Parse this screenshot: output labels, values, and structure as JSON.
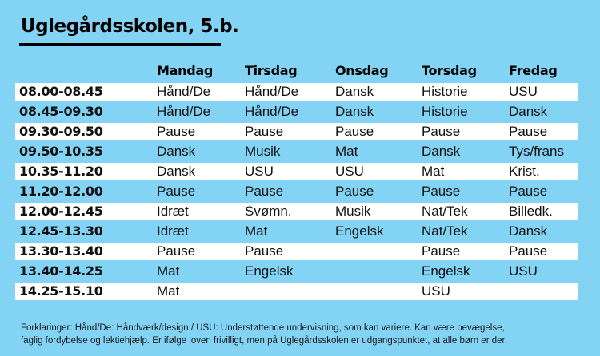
{
  "title": "Uglegårdsskolen, 5.b.",
  "days": [
    "Mandag",
    "Tirsdag",
    "Onsdag",
    "Torsdag",
    "Fredag"
  ],
  "rows": [
    {
      "time": "08.00-08.45",
      "cells": [
        "Hånd/De",
        "Hånd/De",
        "Dansk",
        "Historie",
        "USU"
      ]
    },
    {
      "time": "08.45-09.30",
      "cells": [
        "Hånd/De",
        "Hånd/De",
        "Dansk",
        "Historie",
        "Dansk"
      ]
    },
    {
      "time": "09.30-09.50",
      "cells": [
        "Pause",
        "Pause",
        "Pause",
        "Pause",
        "Pause"
      ]
    },
    {
      "time": "09.50-10.35",
      "cells": [
        "Dansk",
        "Musik",
        "Mat",
        "Dansk",
        "Tys/frans"
      ]
    },
    {
      "time": "10.35-11.20",
      "cells": [
        "Dansk",
        "USU",
        "USU",
        "Mat",
        "Krist."
      ]
    },
    {
      "time": "11.20-12.00",
      "cells": [
        "Pause",
        "Pause",
        "Pause",
        "Pause",
        "Pause"
      ]
    },
    {
      "time": "12.00-12.45",
      "cells": [
        "Idræt",
        "Svømn.",
        "Musik",
        "Nat/Tek",
        "Billedk."
      ]
    },
    {
      "time": "12.45-13.30",
      "cells": [
        "Idræt",
        "Mat",
        "Engelsk",
        "Nat/Tek",
        "Dansk"
      ]
    },
    {
      "time": "13.30-13.40",
      "cells": [
        "Pause",
        "Pause",
        "",
        "Pause",
        "Pause"
      ]
    },
    {
      "time": "13.40-14.25",
      "cells": [
        "Mat",
        "Engelsk",
        "",
        "Engelsk",
        "USU"
      ]
    },
    {
      "time": "14.25-15.10",
      "cells": [
        "Mat",
        "",
        "",
        "USU",
        ""
      ]
    }
  ],
  "footnote": {
    "line1": "Forklaringer: Hånd/De: Håndværk/design / USU: Understøttende undervisning, som kan variere. Kan være bevægelse,",
    "line2": "faglig fordybelse og lektiehjælp. Er ifølge loven frivilligt, men på Uglegårdsskolen er udgangspunktet, at alle børn er der."
  },
  "colors": {
    "background": "#83d3f5",
    "stripe": "#ffffff",
    "text": "#111111"
  }
}
